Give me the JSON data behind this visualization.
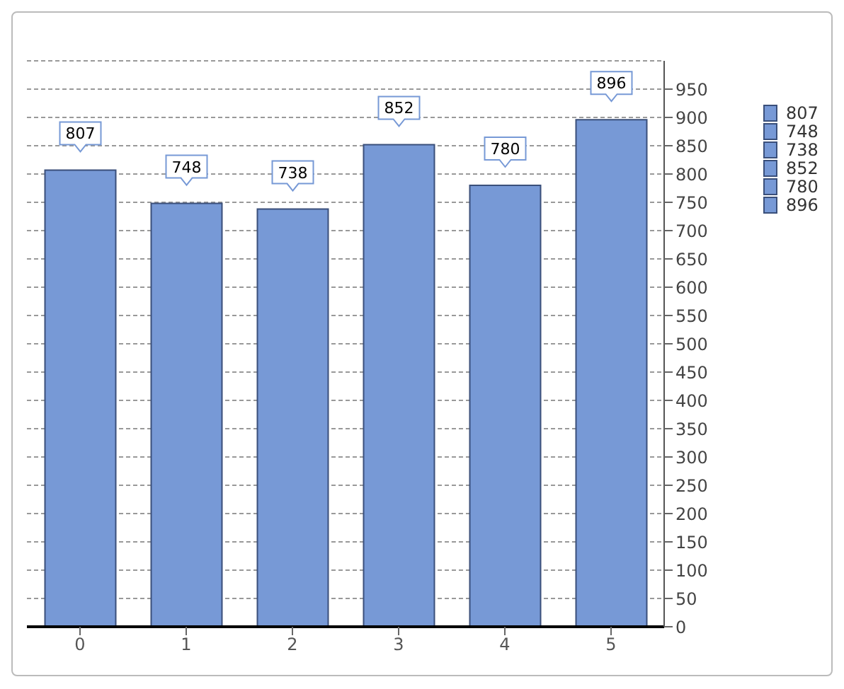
{
  "chart_data": {
    "type": "bar",
    "categories": [
      "0",
      "1",
      "2",
      "3",
      "4",
      "5"
    ],
    "values": [
      807,
      748,
      738,
      852,
      780,
      896
    ],
    "color": "#7799d6",
    "ylim": [
      0,
      1000
    ],
    "yticks": [
      0,
      50,
      100,
      150,
      200,
      250,
      300,
      350,
      400,
      450,
      500,
      550,
      600,
      650,
      700,
      750,
      800,
      850,
      900,
      950
    ],
    "grid": "y",
    "data_labels": true,
    "annotations": [
      "807",
      "748",
      "738",
      "852",
      "780",
      "896"
    ]
  }
}
